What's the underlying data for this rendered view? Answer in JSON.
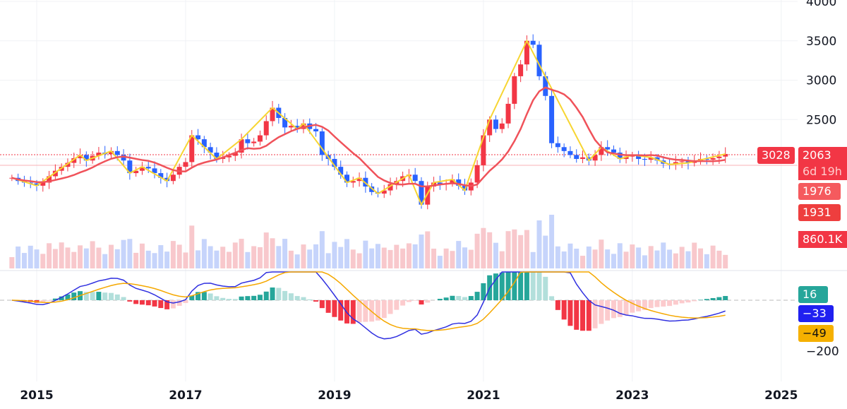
{
  "chart_data": {
    "type": "candlestick",
    "interval": "monthly",
    "start": "2014-09",
    "closes": [
      1760,
      1720,
      1700,
      1690,
      1660,
      1700,
      1780,
      1850,
      1900,
      1950,
      2010,
      2050,
      1980,
      2040,
      2080,
      2060,
      2100,
      2050,
      1980,
      1820,
      1850,
      1900,
      1880,
      1820,
      1760,
      1720,
      1800,
      1900,
      1960,
      2300,
      2250,
      2150,
      2080,
      2000,
      2020,
      2040,
      2080,
      2250,
      2200,
      2220,
      2300,
      2480,
      2650,
      2520,
      2400,
      2420,
      2380,
      2450,
      2380,
      2350,
      2050,
      2000,
      1900,
      1800,
      1700,
      1720,
      1760,
      1650,
      1580,
      1560,
      1600,
      1680,
      1720,
      1780,
      1800,
      1720,
      1420,
      1650,
      1700,
      1680,
      1690,
      1740,
      1660,
      1600,
      1700,
      1920,
      2300,
      2500,
      2380,
      2450,
      2700,
      3050,
      3200,
      3500,
      3450,
      3050,
      2800,
      2200,
      2150,
      2100,
      2050,
      2000,
      2020,
      1980,
      2050,
      2150,
      2120,
      2080,
      2000,
      2030,
      2050,
      2000,
      1990,
      2020,
      1980,
      1940,
      1930,
      1960,
      1970,
      1950,
      1980,
      2000,
      1990,
      2010,
      2030,
      2063
    ],
    "price_axis": {
      "ticks": [
        "4000",
        "3500",
        "3000",
        "2500"
      ],
      "range": [
        1000,
        4000
      ]
    },
    "macd_axis": {
      "ticks": [
        "−200"
      ]
    },
    "time_axis": {
      "ticks": [
        "2015",
        "2017",
        "2019",
        "2021",
        "2023",
        "2025"
      ]
    },
    "labels": {
      "alert_price": "3028",
      "last_price": "2063",
      "countdown": "6d 19h",
      "ma_value": "1976",
      "second_value": "1931",
      "volume": "860.1K",
      "macd_hist": "16",
      "macd_line": "−33",
      "macd_signal": "−49"
    },
    "colors": {
      "up": "#f23645",
      "down": "#2962ff",
      "ma": "#f0525a",
      "zigzag": "#f7d532",
      "macd": "#3030e0",
      "signal": "#f5a800",
      "hist_pos": "#26a69a",
      "hist_neg": "#f23645"
    }
  }
}
